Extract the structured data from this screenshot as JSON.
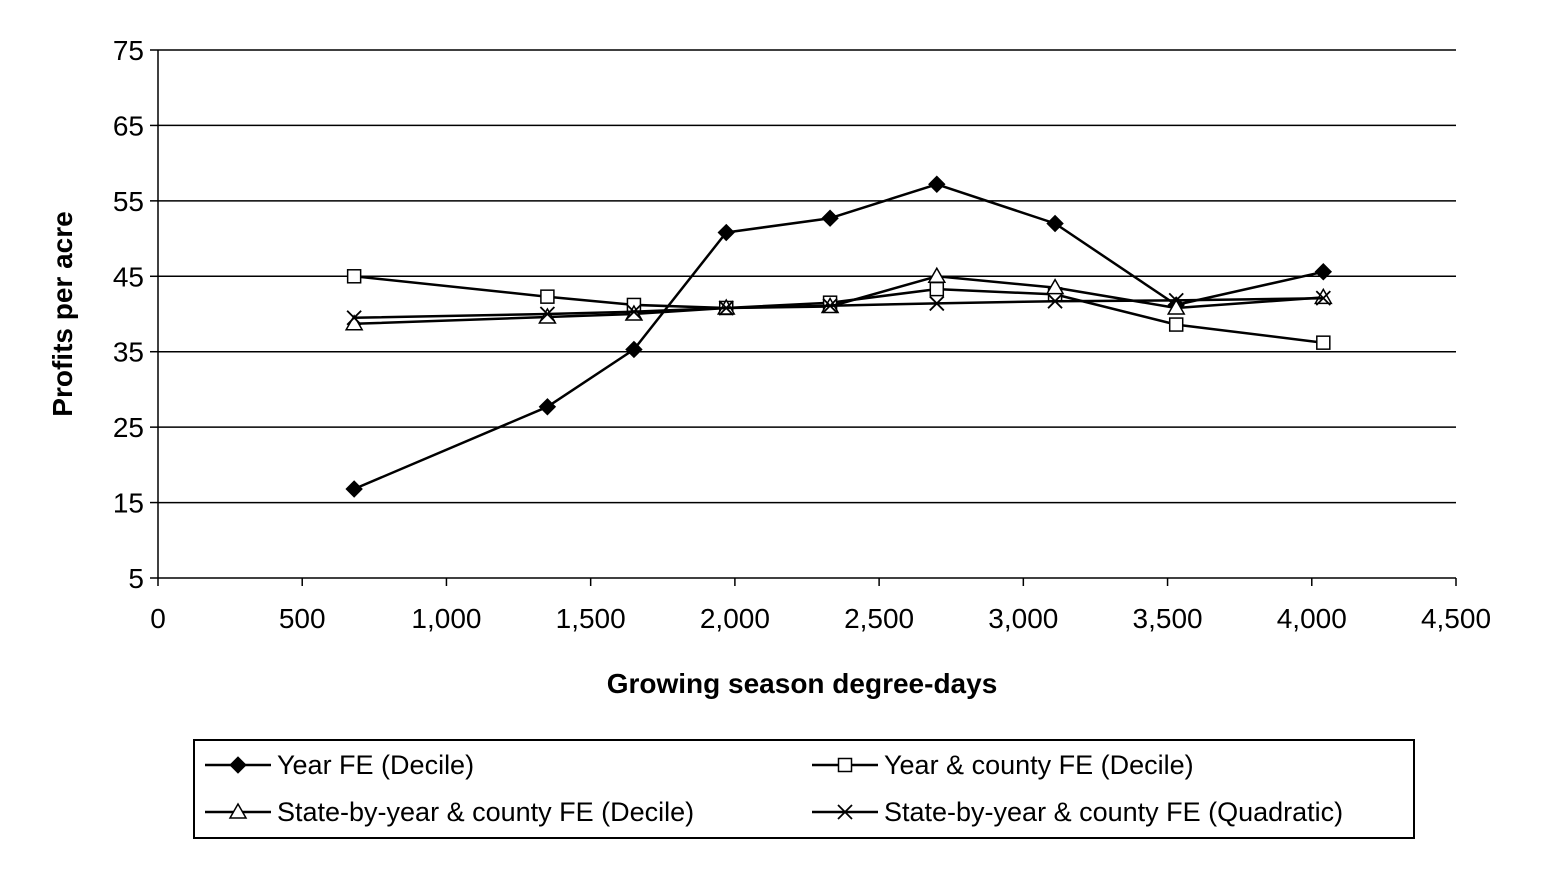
{
  "chart_data": {
    "type": "line",
    "title": "",
    "xlabel": "Growing season degree-days",
    "ylabel": "Profits per acre",
    "xlim": [
      0,
      4500
    ],
    "ylim": [
      5,
      75
    ],
    "x_ticks": [
      "0",
      "500",
      "1,000",
      "1,500",
      "2,000",
      "2,500",
      "3,000",
      "3,500",
      "4,000",
      "4,500"
    ],
    "y_ticks": [
      "5",
      "15",
      "25",
      "35",
      "45",
      "55",
      "65",
      "75"
    ],
    "grid": "horizontal",
    "legend_position": "bottom",
    "series": [
      {
        "name": "Year FE (Decile)",
        "marker": "filled-diamond",
        "points": [
          [
            680,
            16.8
          ],
          [
            1350,
            27.7
          ],
          [
            1650,
            35.3
          ],
          [
            1970,
            50.8
          ],
          [
            2330,
            52.7
          ],
          [
            2700,
            57.2
          ],
          [
            3110,
            52.0
          ],
          [
            3530,
            41.2
          ],
          [
            4040,
            45.6
          ]
        ]
      },
      {
        "name": "Year & county FE (Decile)",
        "marker": "open-square",
        "points": [
          [
            680,
            45.0
          ],
          [
            1350,
            42.3
          ],
          [
            1650,
            41.2
          ],
          [
            1970,
            40.8
          ],
          [
            2330,
            41.5
          ],
          [
            2700,
            43.3
          ],
          [
            3110,
            42.6
          ],
          [
            3530,
            38.6
          ],
          [
            4040,
            36.2
          ]
        ]
      },
      {
        "name": "State-by-year & county FE (Decile)",
        "marker": "open-triangle",
        "points": [
          [
            680,
            38.7
          ],
          [
            1350,
            39.6
          ],
          [
            1650,
            40.0
          ],
          [
            1970,
            40.8
          ],
          [
            2330,
            41.0
          ],
          [
            2700,
            45.0
          ],
          [
            3110,
            43.5
          ],
          [
            3530,
            40.8
          ],
          [
            4040,
            42.2
          ]
        ]
      },
      {
        "name": "State-by-year & county FE (Quadratic)",
        "marker": "x-cross",
        "points": [
          [
            680,
            39.5
          ],
          [
            1350,
            40.0
          ],
          [
            1650,
            40.3
          ],
          [
            1970,
            40.8
          ],
          [
            2330,
            41.1
          ],
          [
            2700,
            41.4
          ],
          [
            3110,
            41.7
          ],
          [
            3530,
            41.8
          ],
          [
            4040,
            42.1
          ]
        ]
      }
    ]
  }
}
